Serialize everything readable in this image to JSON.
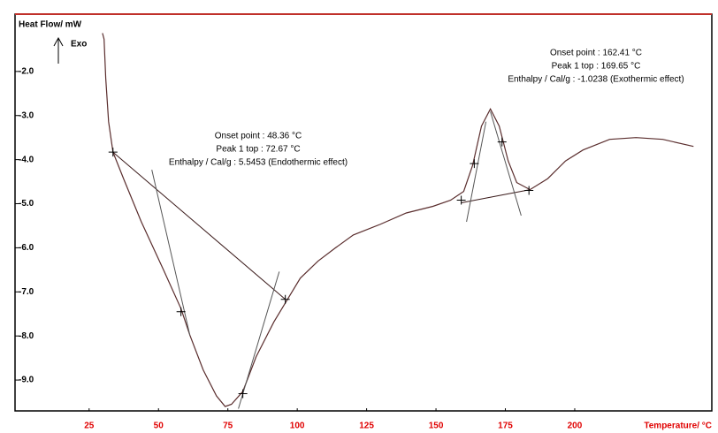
{
  "chart_data": {
    "type": "line",
    "y_label": "Heat Flow/ mW",
    "x_label": "Temperature/ °C",
    "exo_label": "Exo",
    "xlim": [
      -1.7,
      249.4
    ],
    "ylim": [
      -9.7,
      -0.7
    ],
    "xticks": [
      25,
      50,
      75,
      100,
      125,
      150,
      175,
      200
    ],
    "yticks": [
      {
        "value": -2,
        "label": "-2.0"
      },
      {
        "value": -3,
        "label": "-3.0"
      },
      {
        "value": -4,
        "label": "-4.0"
      },
      {
        "value": -5,
        "label": "-5.0"
      },
      {
        "value": -6,
        "label": "-6.0"
      },
      {
        "value": -7,
        "label": "-7.0"
      },
      {
        "value": -8,
        "label": "-8.0"
      },
      {
        "value": -9,
        "label": "-9.0"
      }
    ],
    "series": [
      {
        "color": "#5a2d2d",
        "x": [
          29.8,
          30.4,
          31.0,
          32.0,
          33.6,
          37.4,
          43.8,
          51.8,
          58.1,
          61.3,
          66.1,
          70.9,
          74.0,
          76.3,
          80.4,
          85.2,
          91.6,
          96.3,
          101.1,
          107.5,
          113.8,
          120.2,
          129.8,
          139.3,
          148.9,
          155.3,
          160.0,
          163.2,
          166.4,
          169.6,
          172.8,
          176.0,
          179.1,
          183.9,
          190.3,
          196.7,
          203.0,
          212.6,
          222.1,
          231.7,
          242.8
        ],
        "values": [
          -1.13,
          -1.27,
          -2.16,
          -3.14,
          -3.83,
          -4.43,
          -5.41,
          -6.5,
          -7.38,
          -7.98,
          -8.77,
          -9.36,
          -9.6,
          -9.55,
          -9.26,
          -8.47,
          -7.68,
          -7.19,
          -6.69,
          -6.3,
          -6.0,
          -5.71,
          -5.47,
          -5.21,
          -5.06,
          -4.92,
          -4.72,
          -4.13,
          -3.24,
          -2.85,
          -3.24,
          -4.03,
          -4.52,
          -4.68,
          -4.43,
          -4.03,
          -3.78,
          -3.54,
          -3.5,
          -3.54,
          -3.7
        ]
      },
      {
        "color": "#3a1a1a",
        "x": [
          33.6,
          95.7
        ],
        "values": [
          -3.83,
          -7.17
        ]
      },
      {
        "color": "#555555",
        "x": [
          47.6,
          61.3
        ],
        "values": [
          -4.23,
          -7.98
        ]
      },
      {
        "color": "#555555",
        "x": [
          78.8,
          93.5
        ],
        "values": [
          -9.65,
          -6.54
        ]
      },
      {
        "color": "#3a1a1a",
        "x": [
          159.1,
          183.9
        ],
        "values": [
          -4.98,
          -4.68
        ]
      },
      {
        "color": "#555555",
        "x": [
          161.0,
          168.0
        ],
        "values": [
          -5.41,
          -3.14
        ]
      },
      {
        "color": "#555555",
        "x": [
          169.6,
          180.7
        ],
        "values": [
          -2.91,
          -5.27
        ]
      }
    ],
    "markers": {
      "x": [
        33.6,
        58.1,
        80.4,
        95.7,
        163.8,
        173.8,
        183.5,
        159.1
      ],
      "values": [
        -3.83,
        -7.45,
        -9.31,
        -7.17,
        -4.09,
        -3.6,
        -4.7,
        -4.92
      ]
    },
    "annotations": [
      {
        "lines": [
          "Onset point : 48.36  °C",
          "Peak 1 top : 72.67  °C",
          "Enthalpy / Cal/g : 5.5453 (Endothermic effect)"
        ]
      },
      {
        "lines": [
          "Onset point : 162.41  °C",
          "Peak 1 top : 169.65  °C",
          "Enthalpy / Cal/g : -1.0238 (Exothermic effect)"
        ]
      }
    ]
  }
}
